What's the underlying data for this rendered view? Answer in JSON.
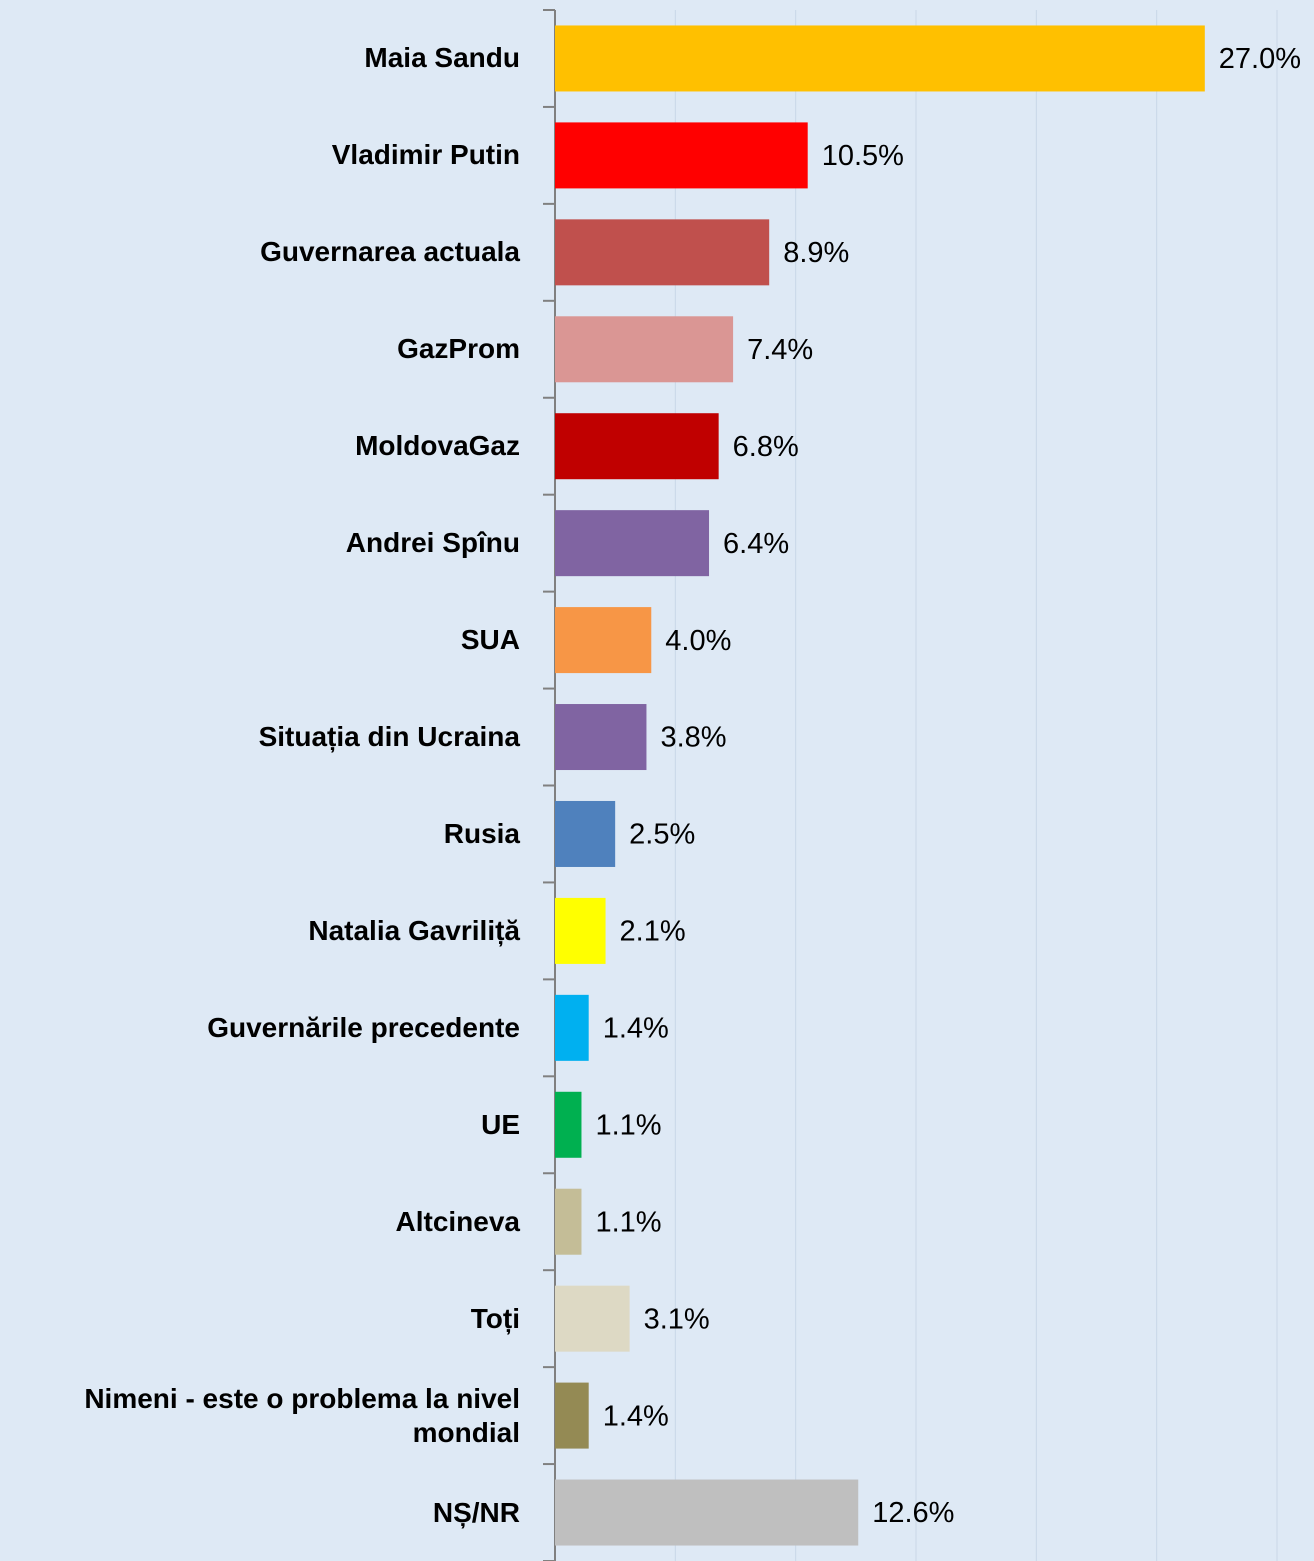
{
  "chart_data": {
    "type": "bar",
    "orientation": "horizontal",
    "categories": [
      "Maia Sandu",
      "Vladimir Putin",
      "Guvernarea actuala",
      "GazProm",
      "MoldovaGaz",
      "Andrei Spînu",
      "SUA",
      "Situația din Ucraina",
      "Rusia",
      "Natalia Gavriliță",
      "Guvernările precedente",
      "UE",
      "Altcineva",
      "Toți",
      "Nimeni - este o problema la nivel mondial",
      "NȘ/NR"
    ],
    "values": [
      27.0,
      10.5,
      8.9,
      7.4,
      6.8,
      6.4,
      4.0,
      3.8,
      2.5,
      2.1,
      1.4,
      1.1,
      1.1,
      3.1,
      1.4,
      12.6
    ],
    "value_labels": [
      "27.0%",
      "10.5%",
      "8.9%",
      "7.4%",
      "6.8%",
      "6.4%",
      "4.0%",
      "3.8%",
      "2.5%",
      "2.1%",
      "1.4%",
      "1.1%",
      "1.1%",
      "3.1%",
      "1.4%",
      "12.6%"
    ],
    "colors": [
      "#ffc000",
      "#ff0000",
      "#c0504d",
      "#da9694",
      "#c00000",
      "#8064a2",
      "#f79646",
      "#8064a2",
      "#4f81bd",
      "#ffff00",
      "#00b0f0",
      "#00b050",
      "#c4bd97",
      "#ddd9c4",
      "#948a54",
      "#bfbfbf"
    ],
    "xlim": [
      0,
      30
    ],
    "xticks": [
      0,
      5,
      10,
      15,
      20,
      25,
      30
    ],
    "grid": true
  }
}
